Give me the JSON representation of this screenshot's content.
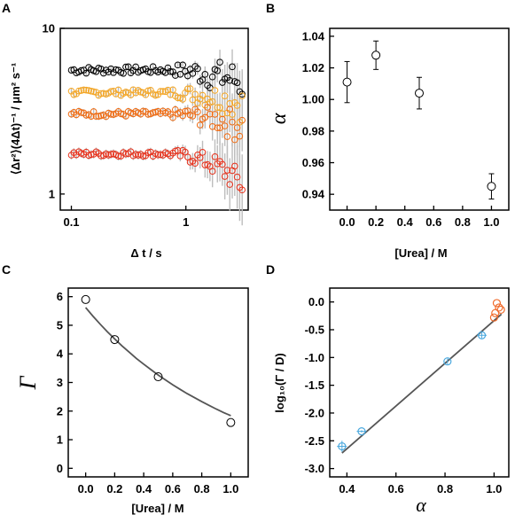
{
  "chart_data": [
    {
      "panel": "A",
      "type": "scatter",
      "x_scale": "log",
      "y_scale": "log",
      "xlim": [
        0.08,
        3.5
      ],
      "ylim": [
        0.8,
        10
      ],
      "x_ticks": [
        0.1,
        1
      ],
      "x_tick_labels": [
        "0.1",
        "1"
      ],
      "y_ticks": [
        1,
        10
      ],
      "y_tick_labels": [
        "1",
        "10"
      ],
      "xlabel": "Δt / s",
      "ylabel": "⟨Δr²⟩(4Δt)⁻¹ / μm² s⁻¹",
      "colors": {
        "series1": "#000000",
        "series2": "#f5a623",
        "series3": "#f06a10",
        "series4": "#e8301a",
        "errorbar": "#bdbdbd"
      },
      "series": [
        {
          "level": 5.6,
          "noise": 0.05
        },
        {
          "level": 4.1,
          "noise": 0.04
        },
        {
          "level": 3.05,
          "noise": 0.04
        },
        {
          "level": 1.75,
          "noise": 0.035
        }
      ],
      "x_range": [
        0.1,
        3.1
      ],
      "grid": false
    },
    {
      "panel": "B",
      "type": "scatter",
      "x": [
        0.0,
        0.2,
        0.5,
        1.0
      ],
      "y": [
        1.011,
        1.028,
        1.004,
        0.945
      ],
      "yerr": [
        0.013,
        0.009,
        0.01,
        0.008
      ],
      "xlim": [
        -0.12,
        1.12
      ],
      "ylim": [
        0.93,
        1.045
      ],
      "x_ticks": [
        0.0,
        0.2,
        0.4,
        0.6,
        0.8,
        1.0
      ],
      "x_tick_labels": [
        "0.0",
        "0.2",
        "0.4",
        "0.6",
        "0.8",
        "1.0"
      ],
      "y_ticks": [
        0.94,
        0.96,
        0.98,
        1.0,
        1.02,
        1.04
      ],
      "y_tick_labels": [
        "0.94",
        "0.96",
        "0.98",
        "1.00",
        "1.02",
        "1.04"
      ],
      "xlabel": "[Urea] / M",
      "ylabel": "α",
      "grid": false
    },
    {
      "panel": "C",
      "type": "scatter",
      "x": [
        0.0,
        0.2,
        0.5,
        1.0
      ],
      "y": [
        5.9,
        4.5,
        3.2,
        1.6
      ],
      "fit_x": [
        0.0,
        0.05,
        0.1,
        0.15,
        0.2,
        0.25,
        0.3,
        0.35,
        0.4,
        0.45,
        0.5,
        0.55,
        0.6,
        0.65,
        0.7,
        0.75,
        0.8,
        0.85,
        0.9,
        0.95,
        1.0
      ],
      "fit_y": [
        5.62,
        5.32,
        5.04,
        4.77,
        4.52,
        4.28,
        4.06,
        3.84,
        3.64,
        3.45,
        3.26,
        3.09,
        2.92,
        2.76,
        2.61,
        2.47,
        2.33,
        2.2,
        2.07,
        1.95,
        1.84
      ],
      "xlim": [
        -0.12,
        1.12
      ],
      "ylim": [
        -0.3,
        6.3
      ],
      "x_ticks": [
        0.0,
        0.2,
        0.4,
        0.6,
        0.8,
        1.0
      ],
      "x_tick_labels": [
        "0.0",
        "0.2",
        "0.4",
        "0.6",
        "0.8",
        "1.0"
      ],
      "y_ticks": [
        0,
        1,
        2,
        3,
        4,
        5,
        6
      ],
      "y_tick_labels": [
        "0",
        "1",
        "2",
        "3",
        "4",
        "5",
        "6"
      ],
      "xlabel": "[Urea] / M",
      "ylabel": "Γ",
      "grid": false
    },
    {
      "panel": "D",
      "type": "scatter",
      "series": [
        {
          "color": "#4aa8de",
          "x": [
            0.38,
            0.46,
            0.81,
            0.95
          ],
          "y": [
            -2.6,
            -2.33,
            -1.07,
            -0.6
          ],
          "xerr": [
            0.02,
            0.02,
            0.0,
            0.02
          ],
          "yerr": [
            0.1,
            0.02,
            0.05,
            0.05
          ]
        },
        {
          "color": "#f06a2a",
          "x": [
            1.0,
            1.005,
            1.011,
            1.02,
            1.028
          ],
          "y": [
            -0.28,
            -0.2,
            -0.02,
            -0.1,
            -0.14
          ],
          "xerr": [
            0,
            0,
            0,
            0,
            0
          ],
          "yerr": [
            0,
            0,
            0,
            0,
            0
          ]
        }
      ],
      "fit_line": {
        "x": [
          0.38,
          1.03
        ],
        "y": [
          -2.72,
          -0.22
        ]
      },
      "xlim": [
        0.33,
        1.06
      ],
      "ylim": [
        -3.15,
        0.25
      ],
      "x_ticks": [
        0.4,
        0.6,
        0.8,
        1.0
      ],
      "x_tick_labels": [
        "0.4",
        "0.6",
        "0.8",
        "1.0"
      ],
      "y_ticks": [
        0.0,
        -0.5,
        -1.0,
        -1.5,
        -2.0,
        -2.5,
        -3.0
      ],
      "y_tick_labels": [
        "0.0",
        "-0.5",
        "-1.0",
        "-1.5",
        "-2.0",
        "-2.5",
        "-3.0"
      ],
      "xlabel": "α",
      "ylabel": "log₁₀(Γ / D)",
      "grid": false
    }
  ],
  "labels": {
    "panel_a": "A",
    "panel_b": "B",
    "panel_c": "C",
    "panel_d": "D",
    "a_xlabel": "Δ t / s",
    "a_ylabel": "⟨Δr²⟩(4Δt)⁻¹ / μm² s⁻¹",
    "b_xlabel": "[Urea] / M",
    "b_ylabel": "α",
    "c_xlabel": "[Urea] / M",
    "c_ylabel": "Γ",
    "d_xlabel": "α",
    "d_ylabel": "log₁₀(Γ / D)"
  }
}
